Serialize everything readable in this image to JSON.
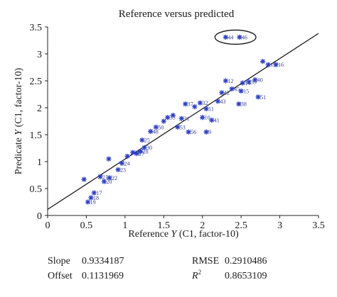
{
  "chart_data": {
    "type": "scatter",
    "title": "Reference versus predicted",
    "xlabel_pre": "Reference ",
    "xlabel_var": "Y",
    "xlabel_post": " (C1, factor-10)",
    "ylabel_pre": "Predicate ",
    "ylabel_var": "Y",
    "ylabel_post": " (C1, factor-10)",
    "xlim": [
      0,
      3.5
    ],
    "ylim": [
      0,
      3.5
    ],
    "xticks": [
      "0",
      "0.5",
      "1",
      "1.5",
      "2",
      "2.5",
      "3",
      "3.5"
    ],
    "yticks": [
      "0",
      "0.5",
      "1",
      "1.5",
      "2",
      "2.5",
      "3",
      "3.5"
    ],
    "marker_color": "#2d3fc4",
    "fit_line": {
      "slope": 0.9334187,
      "offset": 0.1131969
    },
    "highlight": {
      "points": [
        "44",
        "46"
      ]
    },
    "points": [
      {
        "x": 0.47,
        "y": 0.67,
        "label": ""
      },
      {
        "x": 0.52,
        "y": 0.25,
        "label": "19"
      },
      {
        "x": 0.56,
        "y": 0.33,
        "label": "18"
      },
      {
        "x": 0.6,
        "y": 0.42,
        "label": "17"
      },
      {
        "x": 0.68,
        "y": 0.72,
        "label": "21"
      },
      {
        "x": 0.73,
        "y": 0.63,
        "label": "20"
      },
      {
        "x": 0.8,
        "y": 0.7,
        "label": "22"
      },
      {
        "x": 0.79,
        "y": 1.05,
        "label": ""
      },
      {
        "x": 0.91,
        "y": 0.85,
        "label": "23"
      },
      {
        "x": 0.96,
        "y": 0.97,
        "label": "24"
      },
      {
        "x": 1.03,
        "y": 1.1,
        "label": ""
      },
      {
        "x": 1.1,
        "y": 1.17,
        "label": "29"
      },
      {
        "x": 1.15,
        "y": 1.15,
        "label": "27"
      },
      {
        "x": 1.2,
        "y": 1.19,
        "label": "28"
      },
      {
        "x": 1.22,
        "y": 1.4,
        "label": "25"
      },
      {
        "x": 1.25,
        "y": 1.26,
        "label": "30"
      },
      {
        "x": 1.33,
        "y": 1.56,
        "label": "48"
      },
      {
        "x": 1.4,
        "y": 1.64,
        "label": "50"
      },
      {
        "x": 1.5,
        "y": 1.75,
        "label": ""
      },
      {
        "x": 1.55,
        "y": 1.82,
        "label": "35"
      },
      {
        "x": 1.62,
        "y": 1.86,
        "label": ""
      },
      {
        "x": 1.68,
        "y": 1.64,
        "label": "53"
      },
      {
        "x": 1.73,
        "y": 1.8,
        "label": "31"
      },
      {
        "x": 1.78,
        "y": 2.07,
        "label": "37"
      },
      {
        "x": 1.82,
        "y": 1.55,
        "label": "56"
      },
      {
        "x": 1.9,
        "y": 2.02,
        "label": ""
      },
      {
        "x": 1.97,
        "y": 2.09,
        "label": "32"
      },
      {
        "x": 2.0,
        "y": 1.82,
        "label": "10"
      },
      {
        "x": 2.05,
        "y": 1.98,
        "label": "11"
      },
      {
        "x": 2.05,
        "y": 1.55,
        "label": "9"
      },
      {
        "x": 2.12,
        "y": 1.77,
        "label": "41"
      },
      {
        "x": 2.2,
        "y": 2.12,
        "label": "43"
      },
      {
        "x": 2.25,
        "y": 2.28,
        "label": "42"
      },
      {
        "x": 2.3,
        "y": 2.5,
        "label": "12"
      },
      {
        "x": 2.38,
        "y": 2.35,
        "label": "45"
      },
      {
        "x": 2.47,
        "y": 2.07,
        "label": "38"
      },
      {
        "x": 2.5,
        "y": 2.31,
        "label": "15"
      },
      {
        "x": 2.52,
        "y": 2.46,
        "label": "14"
      },
      {
        "x": 2.6,
        "y": 2.48,
        "label": "39"
      },
      {
        "x": 2.68,
        "y": 2.52,
        "label": "40"
      },
      {
        "x": 2.72,
        "y": 2.2,
        "label": "51"
      },
      {
        "x": 2.78,
        "y": 2.86,
        "label": ""
      },
      {
        "x": 2.85,
        "y": 2.8,
        "label": "15"
      },
      {
        "x": 2.95,
        "y": 2.8,
        "label": "16"
      },
      {
        "x": 2.3,
        "y": 3.31,
        "label": "44"
      },
      {
        "x": 2.48,
        "y": 3.31,
        "label": "46"
      }
    ]
  },
  "stats": {
    "slope_label": "Slope",
    "slope_value": "0.9334187",
    "offset_label": "Offset",
    "offset_value": "0.1131969",
    "rmse_label": "RMSE",
    "rmse_value": "0.2910486",
    "r2_label_base": "R",
    "r2_label_sup": "2",
    "r2_value": "0.8653109"
  }
}
